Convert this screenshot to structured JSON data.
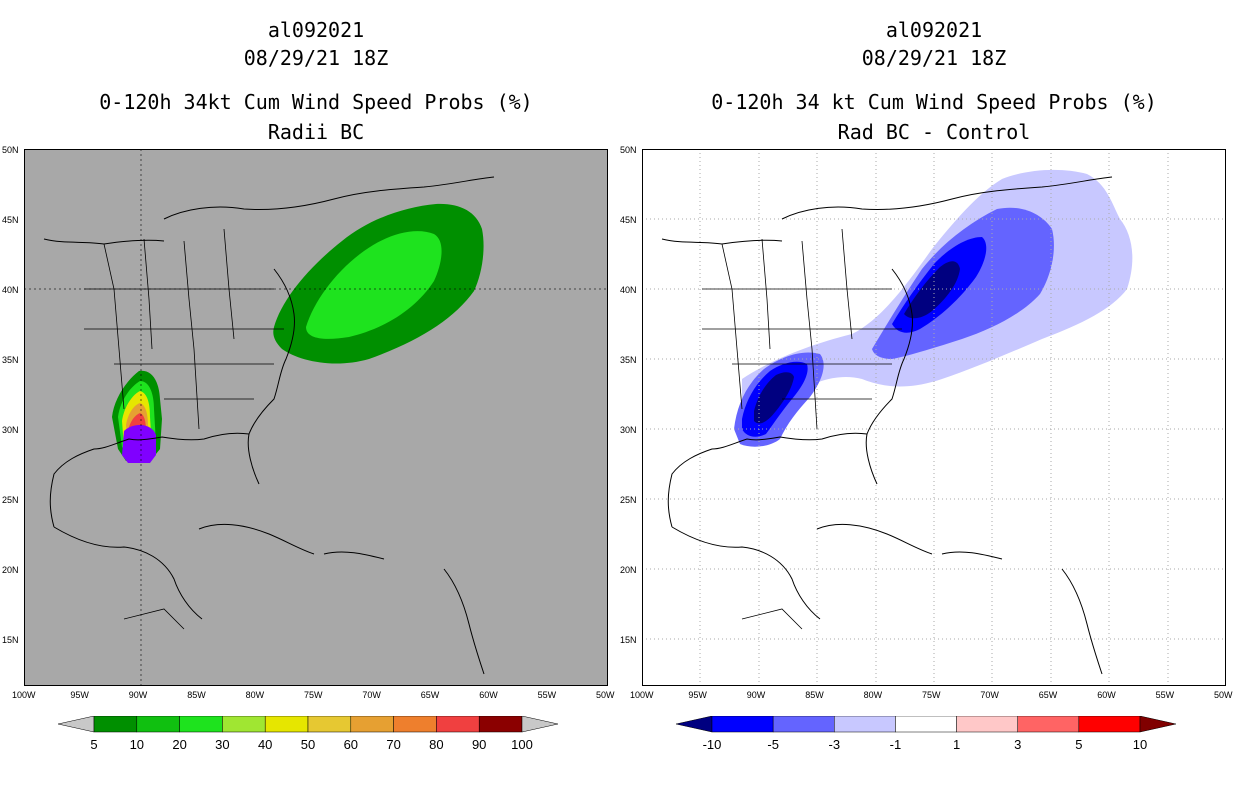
{
  "left_panel": {
    "title_lines": [
      "al092021",
      "08/29/21 18Z",
      "0-120h 34kt Cum Wind Speed Probs (%)",
      "Radii BC"
    ],
    "background_color": "#a8a8a8",
    "colorbar": {
      "labels": [
        "5",
        "10",
        "20",
        "30",
        "40",
        "50",
        "60",
        "70",
        "80",
        "90",
        "100"
      ],
      "colors": [
        "#008f00",
        "#10c010",
        "#1ee31e",
        "#a0e632",
        "#e6e600",
        "#e6c832",
        "#e6a032",
        "#ee7f2d",
        "#f04040",
        "#8b0000",
        "#8000ff",
        "#c8c8c8"
      ],
      "colorbar_title": ""
    }
  },
  "right_panel": {
    "title_lines": [
      "al092021",
      "08/29/21 18Z",
      "0-120h 34 kt Cum Wind Speed Probs (%)",
      "Rad BC - Control"
    ],
    "background_color": "#ffffff",
    "colorbar": {
      "labels": [
        "-10",
        "-5",
        "-3",
        "-1",
        "1",
        "3",
        "5",
        "10"
      ],
      "colors": [
        "#000080",
        "#0000ff",
        "#6464ff",
        "#c8c8ff",
        "#ffffff",
        "#ffc8c8",
        "#ff6464",
        "#ff0000",
        "#800000"
      ]
    }
  },
  "axes": {
    "lon_labels": [
      "100W",
      "95W",
      "90W",
      "85W",
      "80W",
      "75W",
      "70W",
      "65W",
      "60W",
      "55W",
      "50W"
    ],
    "lat_labels": [
      "50N",
      "45N",
      "40N",
      "35N",
      "30N",
      "25N",
      "20N",
      "15N"
    ]
  }
}
